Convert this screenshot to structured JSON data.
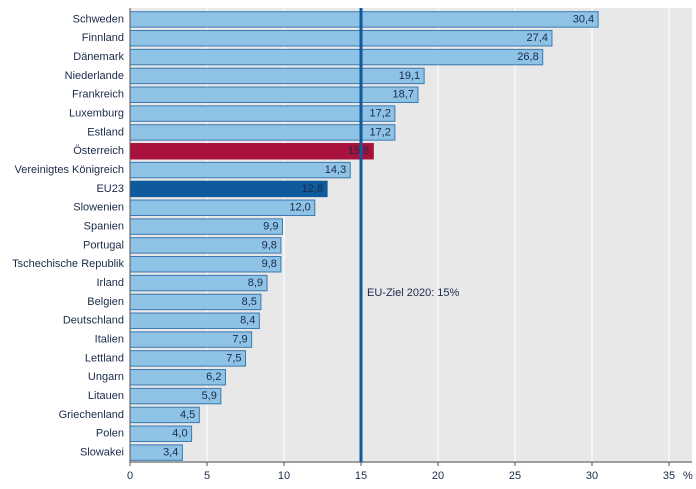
{
  "chart_data": {
    "type": "barh",
    "categories": [
      "Schweden",
      "Finnland",
      "Dänemark",
      "Niederlande",
      "Frankreich",
      "Luxemburg",
      "Estland",
      "Österreich",
      "Vereinigtes Königreich",
      "EU23",
      "Slowenien",
      "Spanien",
      "Portugal",
      "Tschechische Republik",
      "Irland",
      "Belgien",
      "Deutschland",
      "Italien",
      "Lettland",
      "Ungarn",
      "Litauen",
      "Griechenland",
      "Polen",
      "Slowakei"
    ],
    "values": [
      30.4,
      27.4,
      26.8,
      19.1,
      18.7,
      17.2,
      17.2,
      15.8,
      14.3,
      12.8,
      12.0,
      9.9,
      9.8,
      9.8,
      8.9,
      8.5,
      8.4,
      7.9,
      7.5,
      6.2,
      5.9,
      4.5,
      4.0,
      3.4
    ],
    "value_labels": [
      "30,4",
      "27,4",
      "26,8",
      "19,1",
      "18,7",
      "17,2",
      "17,2",
      "15,8",
      "14,3",
      "12,8",
      "12,0",
      "9,9",
      "9,8",
      "9,8",
      "8,9",
      "8,5",
      "8,4",
      "7,9",
      "7,5",
      "6,2",
      "5,9",
      "4,5",
      "4,0",
      "3,4"
    ],
    "colors": [
      "#8ec3e6",
      "#8ec3e6",
      "#8ec3e6",
      "#8ec3e6",
      "#8ec3e6",
      "#8ec3e6",
      "#8ec3e6",
      "#a8123c",
      "#8ec3e6",
      "#0f5a9c",
      "#8ec3e6",
      "#8ec3e6",
      "#8ec3e6",
      "#8ec3e6",
      "#8ec3e6",
      "#8ec3e6",
      "#8ec3e6",
      "#8ec3e6",
      "#8ec3e6",
      "#8ec3e6",
      "#8ec3e6",
      "#8ec3e6",
      "#8ec3e6",
      "#8ec3e6"
    ],
    "color": "#8ec3e6",
    "xlim": [
      0,
      35
    ],
    "xticks": [
      0,
      5,
      10,
      15,
      20,
      25,
      30,
      35
    ],
    "x_unit": "%",
    "grid": true,
    "reference_line": {
      "value": 15,
      "label": "EU-Ziel 2020: 15%",
      "color": "#0f5a9c"
    }
  }
}
